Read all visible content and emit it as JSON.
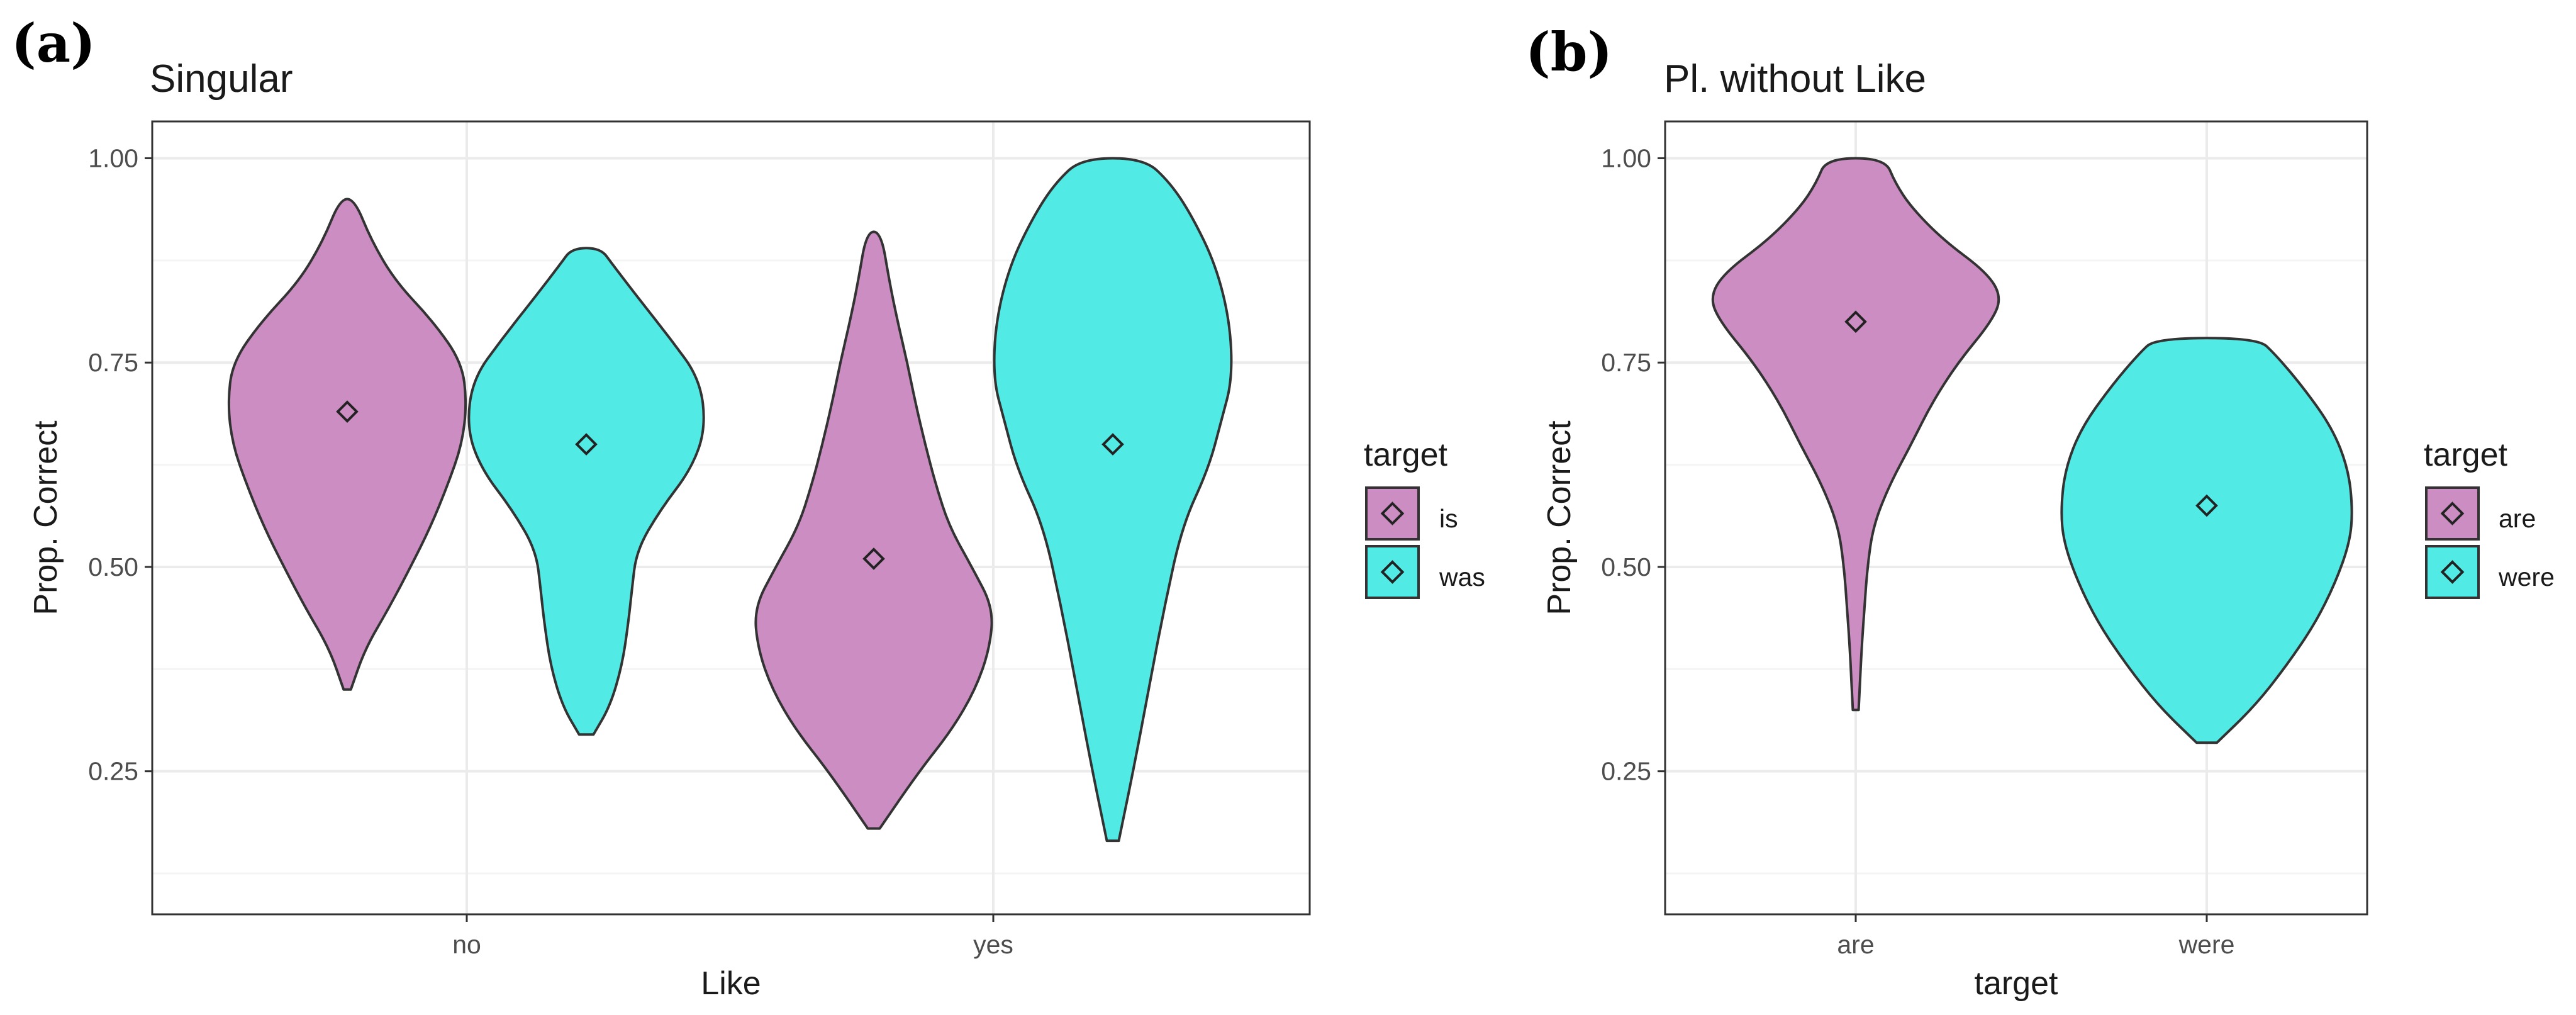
{
  "colors": {
    "magenta": "#CC8EC2",
    "cyan": "#52EAE4",
    "outline": "#333333",
    "grid_major": "#EBEBEB",
    "grid_minor": "#F4F4F4",
    "panel_border": "#333333"
  },
  "chart_data": [
    {
      "type": "violin",
      "panel_label": "(a)",
      "title": "Singular",
      "xlabel": "Like",
      "ylabel": "Prop. Correct",
      "categories": [
        "no",
        "yes"
      ],
      "ylim": [
        0.075,
        1.045
      ],
      "yticks": [
        0.25,
        0.5,
        0.75,
        1.0
      ],
      "ytick_labels": [
        "0.25",
        "0.50",
        "0.75",
        "1.00"
      ],
      "grid": true,
      "legend": {
        "title": "target",
        "position": "right",
        "items": [
          {
            "label": "is",
            "color": "#CC8EC2"
          },
          {
            "label": "was",
            "color": "#52EAE4"
          }
        ]
      },
      "series": [
        {
          "name": "is",
          "category": "no",
          "group_index": 0,
          "color": "#CC8EC2",
          "mean": 0.69,
          "profile": [
            [
              0.35,
              0.03
            ],
            [
              0.4,
              0.15
            ],
            [
              0.45,
              0.35
            ],
            [
              0.5,
              0.53
            ],
            [
              0.55,
              0.7
            ],
            [
              0.6,
              0.84
            ],
            [
              0.65,
              0.96
            ],
            [
              0.7,
              1.0
            ],
            [
              0.75,
              0.96
            ],
            [
              0.8,
              0.72
            ],
            [
              0.85,
              0.4
            ],
            [
              0.9,
              0.2
            ],
            [
              0.95,
              0.06
            ]
          ]
        },
        {
          "name": "was",
          "category": "no",
          "group_index": 1,
          "color": "#52EAE4",
          "mean": 0.65,
          "profile": [
            [
              0.295,
              0.06
            ],
            [
              0.33,
              0.2
            ],
            [
              0.38,
              0.3
            ],
            [
              0.43,
              0.35
            ],
            [
              0.47,
              0.38
            ],
            [
              0.52,
              0.42
            ],
            [
              0.57,
              0.62
            ],
            [
              0.62,
              0.88
            ],
            [
              0.67,
              1.0
            ],
            [
              0.73,
              0.95
            ],
            [
              0.78,
              0.7
            ],
            [
              0.83,
              0.43
            ],
            [
              0.87,
              0.22
            ],
            [
              0.89,
              0.12
            ]
          ]
        },
        {
          "name": "is",
          "category": "yes",
          "group_index": 0,
          "color": "#CC8EC2",
          "mean": 0.51,
          "profile": [
            [
              0.18,
              0.05
            ],
            [
              0.25,
              0.38
            ],
            [
              0.3,
              0.65
            ],
            [
              0.35,
              0.85
            ],
            [
              0.4,
              0.97
            ],
            [
              0.45,
              1.0
            ],
            [
              0.5,
              0.82
            ],
            [
              0.55,
              0.63
            ],
            [
              0.6,
              0.52
            ],
            [
              0.65,
              0.43
            ],
            [
              0.7,
              0.35
            ],
            [
              0.75,
              0.28
            ],
            [
              0.8,
              0.2
            ],
            [
              0.85,
              0.13
            ],
            [
              0.91,
              0.06
            ]
          ]
        },
        {
          "name": "was",
          "category": "yes",
          "group_index": 1,
          "color": "#52EAE4",
          "mean": 0.65,
          "profile": [
            [
              0.165,
              0.05
            ],
            [
              0.25,
              0.17
            ],
            [
              0.35,
              0.3
            ],
            [
              0.45,
              0.43
            ],
            [
              0.55,
              0.58
            ],
            [
              0.62,
              0.8
            ],
            [
              0.68,
              0.91
            ],
            [
              0.73,
              1.0
            ],
            [
              0.8,
              0.98
            ],
            [
              0.87,
              0.86
            ],
            [
              0.93,
              0.66
            ],
            [
              0.97,
              0.48
            ],
            [
              1.0,
              0.26
            ]
          ]
        }
      ]
    },
    {
      "type": "violin",
      "panel_label": "(b)",
      "title": "Pl. without Like",
      "xlabel": "target",
      "ylabel": "Prop. Correct",
      "categories": [
        "are",
        "were"
      ],
      "ylim": [
        0.075,
        1.045
      ],
      "yticks": [
        0.25,
        0.5,
        0.75,
        1.0
      ],
      "ytick_labels": [
        "0.25",
        "0.50",
        "0.75",
        "1.00"
      ],
      "grid": true,
      "legend": {
        "title": "target",
        "position": "right",
        "items": [
          {
            "label": "are",
            "color": "#CC8EC2"
          },
          {
            "label": "were",
            "color": "#52EAE4"
          }
        ]
      },
      "series": [
        {
          "name": "are",
          "category": "are",
          "group_index": 0,
          "color": "#CC8EC2",
          "mean": 0.8,
          "profile": [
            [
              0.325,
              0.02
            ],
            [
              0.4,
              0.04
            ],
            [
              0.45,
              0.06
            ],
            [
              0.5,
              0.08
            ],
            [
              0.55,
              0.12
            ],
            [
              0.6,
              0.23
            ],
            [
              0.65,
              0.38
            ],
            [
              0.7,
              0.52
            ],
            [
              0.75,
              0.7
            ],
            [
              0.8,
              0.93
            ],
            [
              0.83,
              1.0
            ],
            [
              0.86,
              0.9
            ],
            [
              0.9,
              0.6
            ],
            [
              0.94,
              0.38
            ],
            [
              0.97,
              0.27
            ],
            [
              1.0,
              0.2
            ]
          ]
        },
        {
          "name": "were",
          "category": "were",
          "group_index": 1,
          "color": "#52EAE4",
          "mean": 0.575,
          "profile": [
            [
              0.285,
              0.07
            ],
            [
              0.33,
              0.33
            ],
            [
              0.38,
              0.55
            ],
            [
              0.43,
              0.74
            ],
            [
              0.48,
              0.88
            ],
            [
              0.53,
              0.98
            ],
            [
              0.57,
              1.0
            ],
            [
              0.62,
              0.97
            ],
            [
              0.67,
              0.86
            ],
            [
              0.72,
              0.66
            ],
            [
              0.76,
              0.47
            ],
            [
              0.78,
              0.35
            ]
          ]
        }
      ]
    }
  ]
}
